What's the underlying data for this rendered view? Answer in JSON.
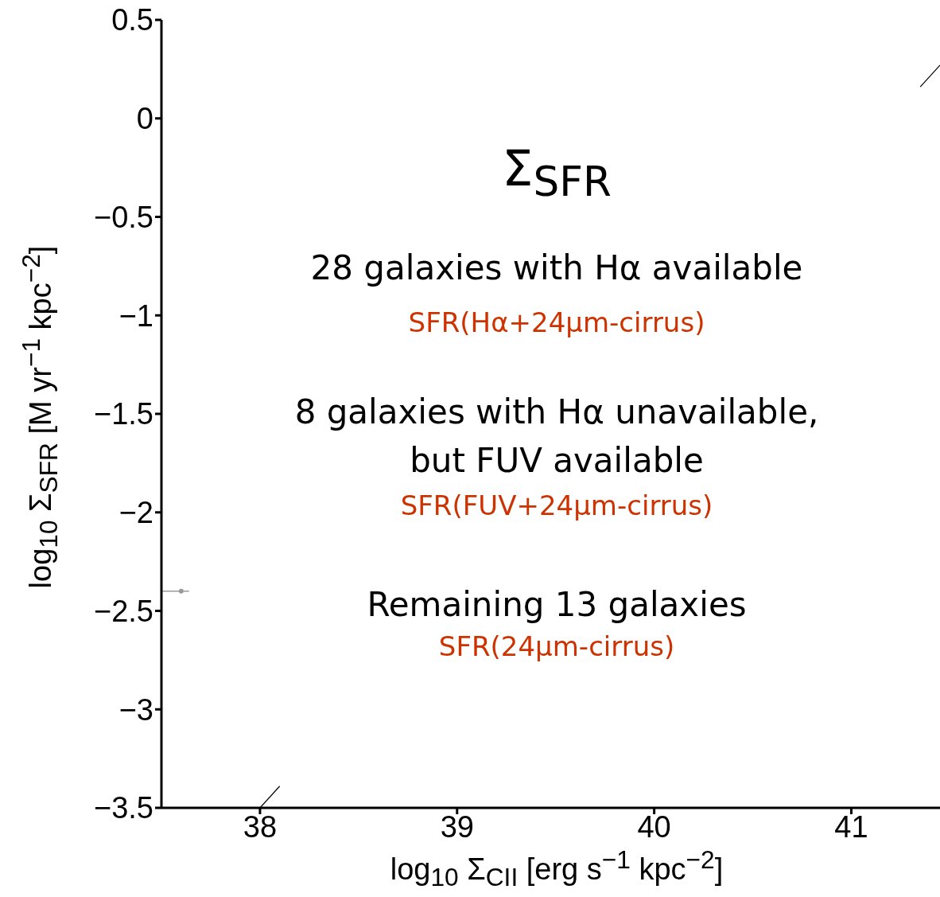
{
  "chart_data": {
    "type": "scatter",
    "xlabel": "log$_{10}$ Σ$_{CII}$ [erg s$^{−1}$ kpc$^{−2}$]",
    "ylabel": "log$_{10}$ Σ$_{SFR}$ [M yr$^{−1}$ kpc$^{−2}$]",
    "annotations": [
      "Σ$_{SFR}$",
      "28 galaxies with Hα available",
      "SFR(Hα+24µm-cirrus)",
      "8 galaxies with Hα unavailable,\nbut FUV available",
      "SFR(FUV+24µm-cirrus)",
      "Remaining 13 galaxies",
      "SFR(24µm-cirrus)"
    ],
    "xlim": [
      37.5,
      41.45
    ],
    "xticks": [
      38,
      39,
      40,
      41
    ],
    "ylim": [
      -3.5,
      0.5
    ],
    "yticks": [
      {
        "value": -3.5,
        "label": "−3.5"
      },
      {
        "value": -3,
        "label": "−3"
      },
      {
        "value": -2.5,
        "label": "−2.5"
      },
      {
        "value": -2,
        "label": "−2"
      },
      {
        "value": -1.5,
        "label": "−1.5"
      },
      {
        "value": -1,
        "label": "−1"
      },
      {
        "value": -0.5,
        "label": "−0.5"
      },
      0,
      0.5
    ],
    "series": [
      {
        "color": "#999999",
        "x": [
          37.6
        ],
        "values": [
          -2.4
        ],
        "xerrors": [
          [
            37.5,
            37.64
          ]
        ]
      },
      {
        "type": "line",
        "color": "#000000",
        "x": [
          38.0,
          38.1,
          38.2,
          41.35,
          41.45
        ],
        "values": [
          -3.5,
          -3.39,
          null,
          0.16,
          0.27
        ]
      }
    ]
  }
}
